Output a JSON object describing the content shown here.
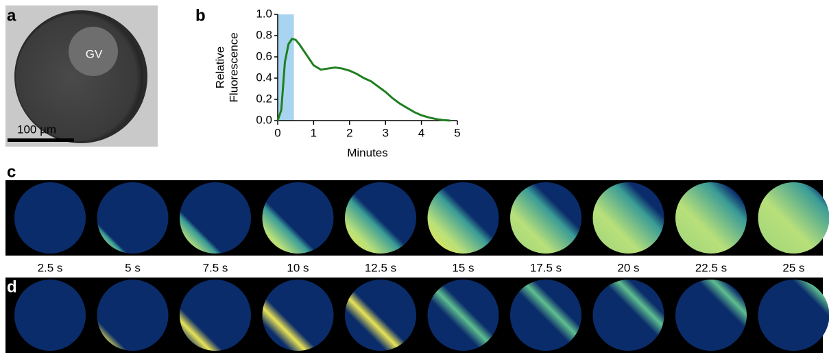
{
  "panel_a": {
    "label": "a",
    "region_label": "GV",
    "scale_bar": "100 µm"
  },
  "chart_data": {
    "type": "line",
    "label": "b",
    "y_label_lines": [
      "Relative",
      "Fluorescence"
    ],
    "x_label": "Minutes",
    "x": [
      0,
      0.1,
      0.2,
      0.3,
      0.4,
      0.5,
      0.6,
      0.8,
      1.0,
      1.2,
      1.4,
      1.6,
      1.8,
      2.0,
      2.2,
      2.4,
      2.6,
      2.8,
      3.0,
      3.2,
      3.4,
      3.6,
      3.8,
      4.0,
      4.2,
      4.4,
      4.6,
      4.8
    ],
    "series": [
      {
        "color": "#1f7f1f",
        "values": [
          0,
          0.1,
          0.55,
          0.72,
          0.77,
          0.76,
          0.72,
          0.62,
          0.52,
          0.48,
          0.49,
          0.5,
          0.49,
          0.47,
          0.44,
          0.4,
          0.37,
          0.32,
          0.27,
          0.21,
          0.16,
          0.12,
          0.08,
          0.05,
          0.03,
          0.015,
          0.005,
          0
        ]
      }
    ],
    "shaded_span": [
      0,
      0.45
    ],
    "shaded_color": "#a8d4f0",
    "xlim": [
      0,
      5
    ],
    "xticks": [
      0,
      1,
      2,
      3,
      4,
      5
    ],
    "ylim": [
      0,
      1
    ],
    "yticks": [
      {
        "value": 0,
        "label": "0.0"
      },
      {
        "value": 0.2,
        "label": "0.2"
      },
      {
        "value": 0.4,
        "label": "0.4"
      },
      {
        "value": 0.6,
        "label": "0.6"
      },
      {
        "value": 0.8,
        "label": "0.8"
      },
      {
        "value": 1,
        "label": "1.0"
      }
    ]
  },
  "panel_c": {
    "label": "c"
  },
  "panel_d": {
    "label": "d"
  },
  "times": [
    "2.5 s",
    "5 s",
    "7.5 s",
    "10 s",
    "12.5 s",
    "15 s",
    "17.5 s",
    "20 s",
    "22.5 s",
    "25 s"
  ]
}
